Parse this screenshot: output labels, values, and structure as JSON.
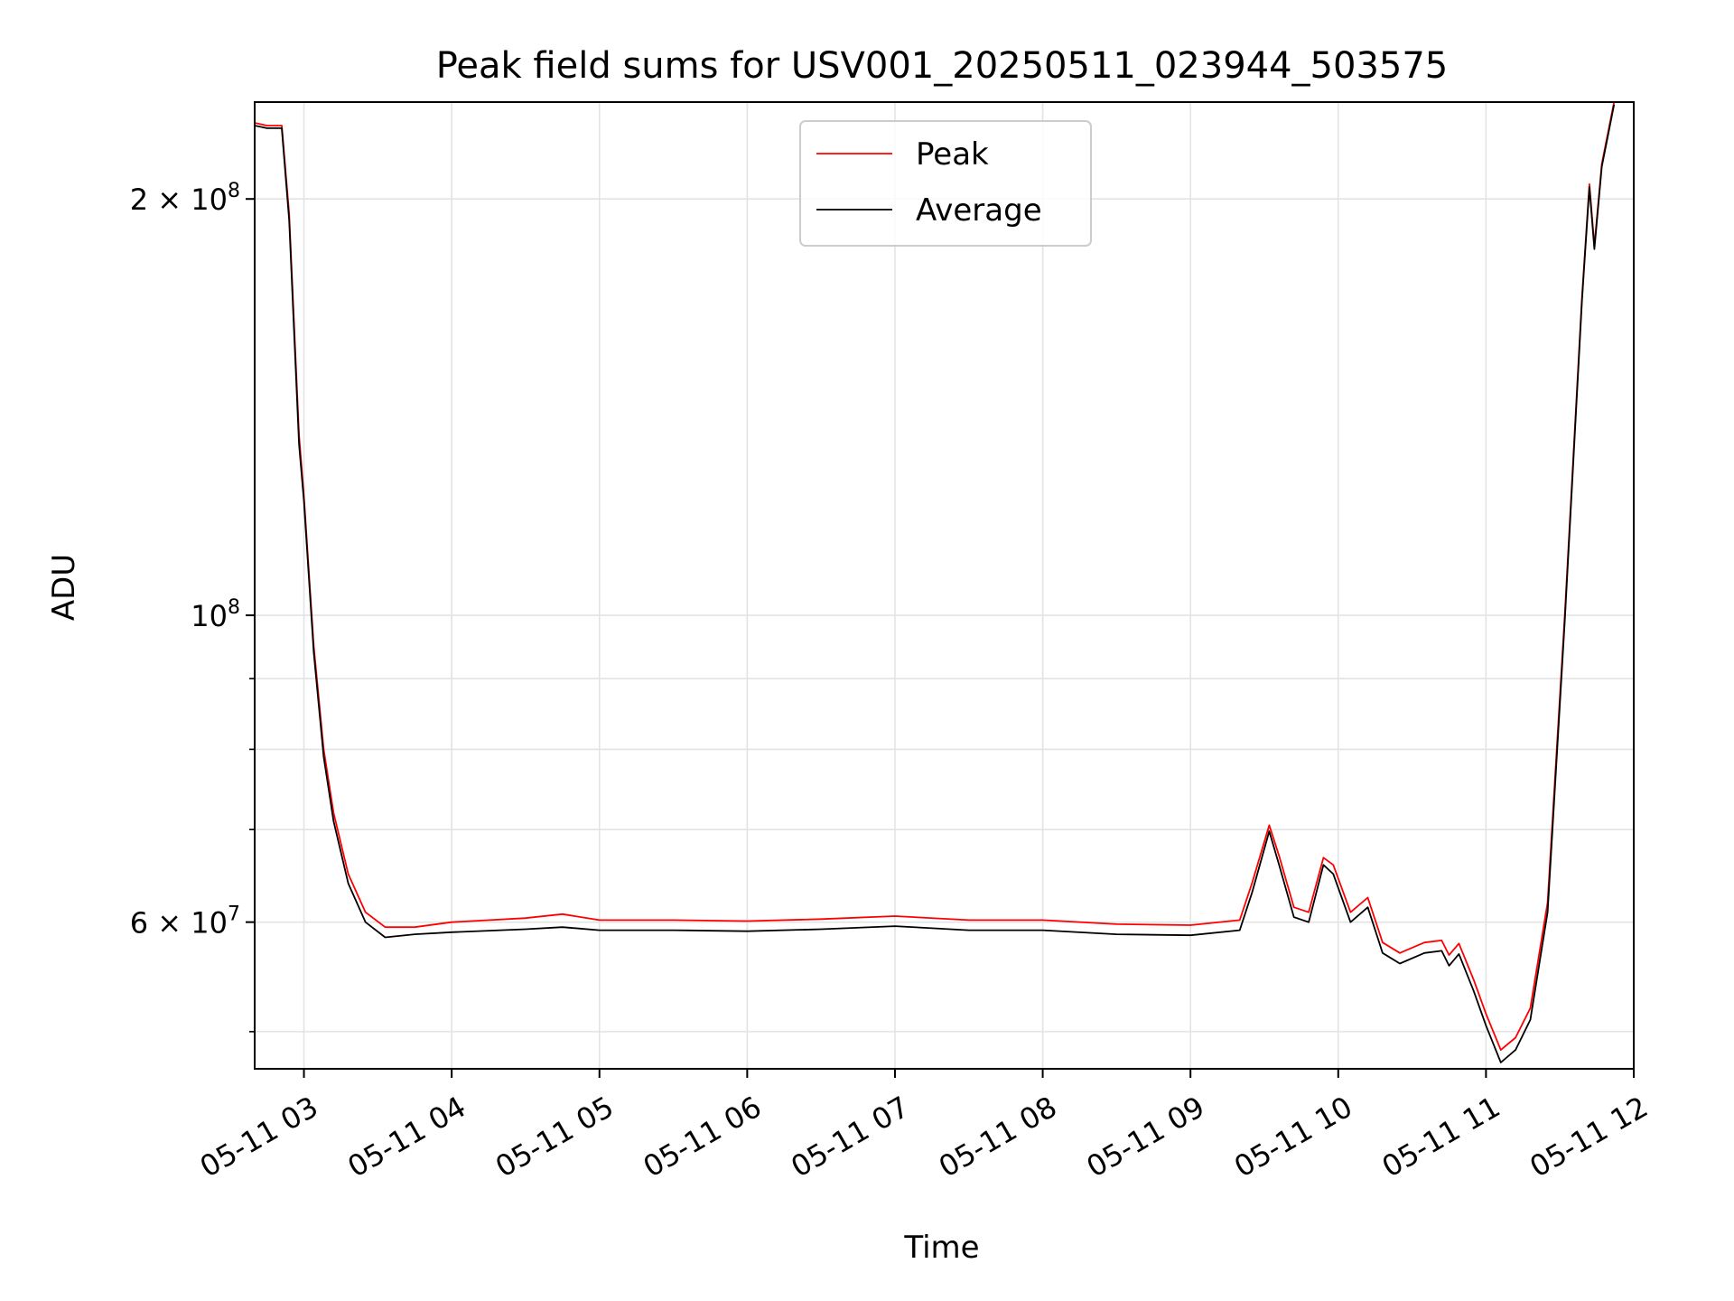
{
  "chart_data": {
    "type": "line",
    "title": "Peak field sums for USV001_20250511_023944_503575",
    "xlabel": "Time",
    "ylabel": "ADU",
    "yscale": "log",
    "grid": true,
    "legend_position": "top-center",
    "xlim": [
      "2025-05-11 02:40",
      "2025-05-11 12:00"
    ],
    "ylim": [
      47000000,
      235000000
    ],
    "x_ticks": [
      "05-11 03",
      "05-11 04",
      "05-11 05",
      "05-11 06",
      "05-11 07",
      "05-11 08",
      "05-11 09",
      "05-11 10",
      "05-11 11",
      "05-11 12"
    ],
    "x_tick_values": [
      "2025-05-11 03:00",
      "2025-05-11 04:00",
      "2025-05-11 05:00",
      "2025-05-11 06:00",
      "2025-05-11 07:00",
      "2025-05-11 08:00",
      "2025-05-11 09:00",
      "2025-05-11 10:00",
      "2025-05-11 11:00",
      "2025-05-11 12:00"
    ],
    "y_ticks": [
      {
        "value": 200000000,
        "mantissa": "2",
        "exponent": "8"
      },
      {
        "value": 100000000,
        "mantissa": "",
        "exponent": "8"
      },
      {
        "value": 60000000,
        "mantissa": "6",
        "exponent": "7"
      }
    ],
    "y_minor_gridlines": [
      50000000,
      70000000,
      80000000,
      90000000
    ],
    "series": [
      {
        "name": "Peak",
        "color": "#ff0000",
        "points": [
          [
            "2025-05-11 02:40",
            227000000
          ],
          [
            "2025-05-11 02:45",
            226000000
          ],
          [
            "2025-05-11 02:51",
            226000000
          ],
          [
            "2025-05-11 02:54",
            195000000
          ],
          [
            "2025-05-11 02:58",
            135000000
          ],
          [
            "2025-05-11 03:00",
            122000000
          ],
          [
            "2025-05-11 03:04",
            95000000
          ],
          [
            "2025-05-11 03:08",
            80000000
          ],
          [
            "2025-05-11 03:12",
            72000000
          ],
          [
            "2025-05-11 03:18",
            65000000
          ],
          [
            "2025-05-11 03:25",
            61000000
          ],
          [
            "2025-05-11 03:33",
            59500000
          ],
          [
            "2025-05-11 03:45",
            59500000
          ],
          [
            "2025-05-11 04:00",
            60000000
          ],
          [
            "2025-05-11 04:30",
            60400000
          ],
          [
            "2025-05-11 04:45",
            60800000
          ],
          [
            "2025-05-11 05:00",
            60200000
          ],
          [
            "2025-05-11 05:30",
            60200000
          ],
          [
            "2025-05-11 06:00",
            60100000
          ],
          [
            "2025-05-11 06:30",
            60300000
          ],
          [
            "2025-05-11 07:00",
            60600000
          ],
          [
            "2025-05-11 07:30",
            60200000
          ],
          [
            "2025-05-11 08:00",
            60200000
          ],
          [
            "2025-05-11 08:30",
            59800000
          ],
          [
            "2025-05-11 09:00",
            59700000
          ],
          [
            "2025-05-11 09:20",
            60200000
          ],
          [
            "2025-05-11 09:25",
            64000000
          ],
          [
            "2025-05-11 09:32",
            70500000
          ],
          [
            "2025-05-11 09:36",
            67000000
          ],
          [
            "2025-05-11 09:42",
            61500000
          ],
          [
            "2025-05-11 09:48",
            61000000
          ],
          [
            "2025-05-11 09:54",
            66800000
          ],
          [
            "2025-05-11 09:58",
            66000000
          ],
          [
            "2025-05-11 10:05",
            61000000
          ],
          [
            "2025-05-11 10:12",
            62500000
          ],
          [
            "2025-05-11 10:18",
            58000000
          ],
          [
            "2025-05-11 10:25",
            57000000
          ],
          [
            "2025-05-11 10:35",
            58000000
          ],
          [
            "2025-05-11 10:42",
            58200000
          ],
          [
            "2025-05-11 10:45",
            56800000
          ],
          [
            "2025-05-11 10:49",
            57900000
          ],
          [
            "2025-05-11 10:55",
            54500000
          ],
          [
            "2025-05-11 11:00",
            51500000
          ],
          [
            "2025-05-11 11:06",
            48500000
          ],
          [
            "2025-05-11 11:12",
            49500000
          ],
          [
            "2025-05-11 11:18",
            52000000
          ],
          [
            "2025-05-11 11:25",
            62000000
          ],
          [
            "2025-05-11 11:32",
            100000000
          ],
          [
            "2025-05-11 11:39",
            170000000
          ],
          [
            "2025-05-11 11:42",
            205000000
          ],
          [
            "2025-05-11 11:44",
            185000000
          ],
          [
            "2025-05-11 11:47",
            212000000
          ],
          [
            "2025-05-11 11:52",
            235000000
          ]
        ]
      },
      {
        "name": "Average",
        "color": "#000000",
        "points": [
          [
            "2025-05-11 02:40",
            226000000
          ],
          [
            "2025-05-11 02:45",
            225000000
          ],
          [
            "2025-05-11 02:51",
            225000000
          ],
          [
            "2025-05-11 02:54",
            193000000
          ],
          [
            "2025-05-11 02:58",
            133000000
          ],
          [
            "2025-05-11 03:00",
            121000000
          ],
          [
            "2025-05-11 03:04",
            94000000
          ],
          [
            "2025-05-11 03:08",
            79000000
          ],
          [
            "2025-05-11 03:12",
            71000000
          ],
          [
            "2025-05-11 03:18",
            64000000
          ],
          [
            "2025-05-11 03:25",
            60000000
          ],
          [
            "2025-05-11 03:33",
            58500000
          ],
          [
            "2025-05-11 03:45",
            58800000
          ],
          [
            "2025-05-11 04:00",
            59000000
          ],
          [
            "2025-05-11 04:30",
            59300000
          ],
          [
            "2025-05-11 04:45",
            59500000
          ],
          [
            "2025-05-11 05:00",
            59200000
          ],
          [
            "2025-05-11 05:30",
            59200000
          ],
          [
            "2025-05-11 06:00",
            59100000
          ],
          [
            "2025-05-11 06:30",
            59300000
          ],
          [
            "2025-05-11 07:00",
            59600000
          ],
          [
            "2025-05-11 07:30",
            59200000
          ],
          [
            "2025-05-11 08:00",
            59200000
          ],
          [
            "2025-05-11 08:30",
            58800000
          ],
          [
            "2025-05-11 09:00",
            58700000
          ],
          [
            "2025-05-11 09:20",
            59200000
          ],
          [
            "2025-05-11 09:25",
            63000000
          ],
          [
            "2025-05-11 09:32",
            69800000
          ],
          [
            "2025-05-11 09:36",
            66000000
          ],
          [
            "2025-05-11 09:42",
            60500000
          ],
          [
            "2025-05-11 09:48",
            60000000
          ],
          [
            "2025-05-11 09:54",
            66000000
          ],
          [
            "2025-05-11 09:58",
            65000000
          ],
          [
            "2025-05-11 10:05",
            60000000
          ],
          [
            "2025-05-11 10:12",
            61500000
          ],
          [
            "2025-05-11 10:18",
            57000000
          ],
          [
            "2025-05-11 10:25",
            56000000
          ],
          [
            "2025-05-11 10:35",
            57000000
          ],
          [
            "2025-05-11 10:42",
            57200000
          ],
          [
            "2025-05-11 10:45",
            55800000
          ],
          [
            "2025-05-11 10:49",
            56900000
          ],
          [
            "2025-05-11 10:55",
            53500000
          ],
          [
            "2025-05-11 11:00",
            50500000
          ],
          [
            "2025-05-11 11:06",
            47500000
          ],
          [
            "2025-05-11 11:12",
            48500000
          ],
          [
            "2025-05-11 11:18",
            51000000
          ],
          [
            "2025-05-11 11:25",
            61000000
          ],
          [
            "2025-05-11 11:32",
            99000000
          ],
          [
            "2025-05-11 11:39",
            169000000
          ],
          [
            "2025-05-11 11:42",
            204000000
          ],
          [
            "2025-05-11 11:44",
            184000000
          ],
          [
            "2025-05-11 11:47",
            211000000
          ],
          [
            "2025-05-11 11:52",
            234000000
          ]
        ]
      }
    ]
  }
}
